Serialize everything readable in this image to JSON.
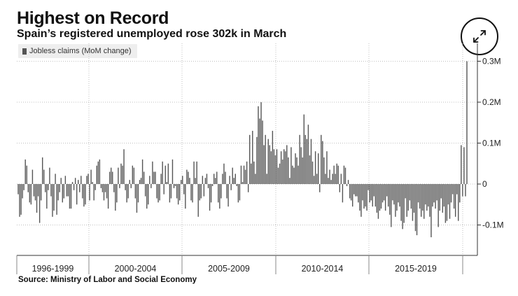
{
  "header": {
    "title": "Highest on Record",
    "subtitle": "Spain’s registered unemployed rose 302k in March"
  },
  "legend": {
    "label": "Jobless claims (MoM change)"
  },
  "source": "Source: Ministry of Labor and Social Economy",
  "colors": {
    "bar": "#555555",
    "grid": "#bfbfbf",
    "axis": "#333333"
  },
  "icons": {
    "expand": "expand-arrows-icon"
  },
  "chart_data": {
    "type": "bar",
    "xlabel": "",
    "ylabel": "",
    "ylim": [
      -0.175,
      0.31
    ],
    "y_ticks": [
      {
        "value": 0.3,
        "label": "0.3M"
      },
      {
        "value": 0.2,
        "label": "0.2M"
      },
      {
        "value": 0.1,
        "label": "0.1M"
      },
      {
        "value": 0,
        "label": "0"
      },
      {
        "value": -0.1,
        "label": "-0.1M"
      }
    ],
    "period_labels": [
      "1996-1999",
      "2000-2004",
      "2005-2009",
      "2010-2014",
      "2015-2019"
    ],
    "grid": true,
    "legend_position": "top-left",
    "y_axis_position": "right",
    "series": [
      {
        "name": "Jobless claims (MoM change)",
        "values": [
          -0.025,
          -0.08,
          -0.075,
          -0.035,
          -0.015,
          0.06,
          0.045,
          -0.02,
          -0.045,
          -0.05,
          0.035,
          -0.03,
          -0.04,
          -0.07,
          -0.03,
          -0.095,
          -0.04,
          0.065,
          0.035,
          -0.02,
          -0.06,
          -0.015,
          0.04,
          -0.03,
          -0.08,
          -0.065,
          0.025,
          -0.075,
          -0.04,
          -0.02,
          0.015,
          -0.045,
          -0.035,
          0.02,
          -0.03,
          -0.03,
          -0.06,
          -0.06,
          0.005,
          -0.015,
          0.015,
          -0.05,
          0.01,
          -0.02,
          0.02,
          -0.035,
          -0.055,
          -0.05,
          0.02,
          0.025,
          -0.04,
          0.035,
          0.005,
          -0.04,
          -0.015,
          0.045,
          0.055,
          0.06,
          -0.01,
          -0.02,
          -0.04,
          -0.02,
          -0.035,
          -0.06,
          0.03,
          0.04,
          0.03,
          -0.02,
          -0.065,
          -0.045,
          0.04,
          -0.01,
          0.05,
          0.045,
          0.085,
          -0.015,
          -0.045,
          -0.035,
          0.01,
          -0.01,
          0.045,
          0.04,
          -0.035,
          -0.07,
          -0.045,
          0.01,
          0.015,
          0.06,
          0.03,
          -0.03,
          -0.06,
          -0.05,
          0.02,
          -0.01,
          0.055,
          0.03,
          0.03,
          -0.035,
          -0.045,
          -0.04,
          0.025,
          0.055,
          -0.025,
          0.045,
          0.005,
          0.05,
          -0.045,
          -0.035,
          0.06,
          -0.01,
          -0.005,
          -0.035,
          -0.05,
          -0.04,
          0.01,
          0.02,
          -0.025,
          -0.06,
          0.035,
          0.03,
          0.015,
          -0.04,
          -0.045,
          0.055,
          0.015,
          0.055,
          -0.08,
          -0.04,
          -0.035,
          0.02,
          -0.03,
          0.015,
          0.025,
          -0.01,
          -0.065,
          -0.045,
          -0.005,
          0.025,
          0.015,
          0.03,
          -0.045,
          -0.06,
          -0.035,
          0.025,
          0.05,
          0.03,
          -0.035,
          -0.055,
          0.02,
          -0.015,
          0.04,
          0.015,
          0.025,
          -0.005,
          -0.045,
          -0.04,
          0.045,
          0.005,
          0.045,
          0.035,
          0.055,
          -0.02,
          0.12,
          0.05,
          0.13,
          0.055,
          0.025,
          0.115,
          0.19,
          0.16,
          0.2,
          0.155,
          0.095,
          0.12,
          0.025,
          0.11,
          0.095,
          0.08,
          0.13,
          0.085,
          0.07,
          0.085,
          0.04,
          0.05,
          0.08,
          0.06,
          0.085,
          0.08,
          0.095,
          0.065,
          0.015,
          0.09,
          0.045,
          0.04,
          0.075,
          0.065,
          0.045,
          0.12,
          0.09,
          0.065,
          0.17,
          0.12,
          0.11,
          0.145,
          0.07,
          0.11,
          0.055,
          0.02,
          0.08,
          0.025,
          0.075,
          -0.02,
          0.12,
          0.105,
          0.065,
          0.025,
          0.08,
          0.015,
          0.035,
          0.01,
          0.025,
          0.045,
          0.025,
          0.05,
          0.045,
          -0.02,
          0.025,
          -0.045,
          0.045,
          0.04,
          -0.005,
          0.01,
          -0.035,
          -0.04,
          -0.055,
          -0.025,
          -0.03,
          -0.03,
          -0.045,
          -0.065,
          -0.08,
          -0.04,
          -0.06,
          -0.055,
          -0.065,
          -0.015,
          -0.045,
          -0.04,
          -0.055,
          -0.03,
          -0.055,
          -0.07,
          -0.085,
          -0.065,
          -0.06,
          -0.045,
          -0.04,
          -0.065,
          -0.03,
          -0.055,
          -0.075,
          -0.105,
          -0.04,
          -0.05,
          -0.08,
          -0.065,
          -0.045,
          -0.055,
          -0.09,
          -0.11,
          -0.095,
          -0.035,
          -0.08,
          -0.065,
          -0.04,
          -0.06,
          -0.09,
          -0.07,
          -0.115,
          -0.125,
          -0.045,
          -0.06,
          -0.08,
          -0.065,
          -0.085,
          -0.05,
          -0.065,
          -0.055,
          -0.08,
          -0.13,
          -0.055,
          -0.045,
          -0.06,
          -0.04,
          -0.105,
          -0.065,
          -0.035,
          -0.07,
          -0.055,
          -0.095,
          -0.09,
          -0.05,
          -0.085,
          -0.045,
          -0.025,
          -0.06,
          -0.08,
          -0.025,
          -0.09,
          -0.045,
          0.095,
          -0.03,
          0.09,
          -0.03,
          0.3
        ]
      }
    ]
  }
}
